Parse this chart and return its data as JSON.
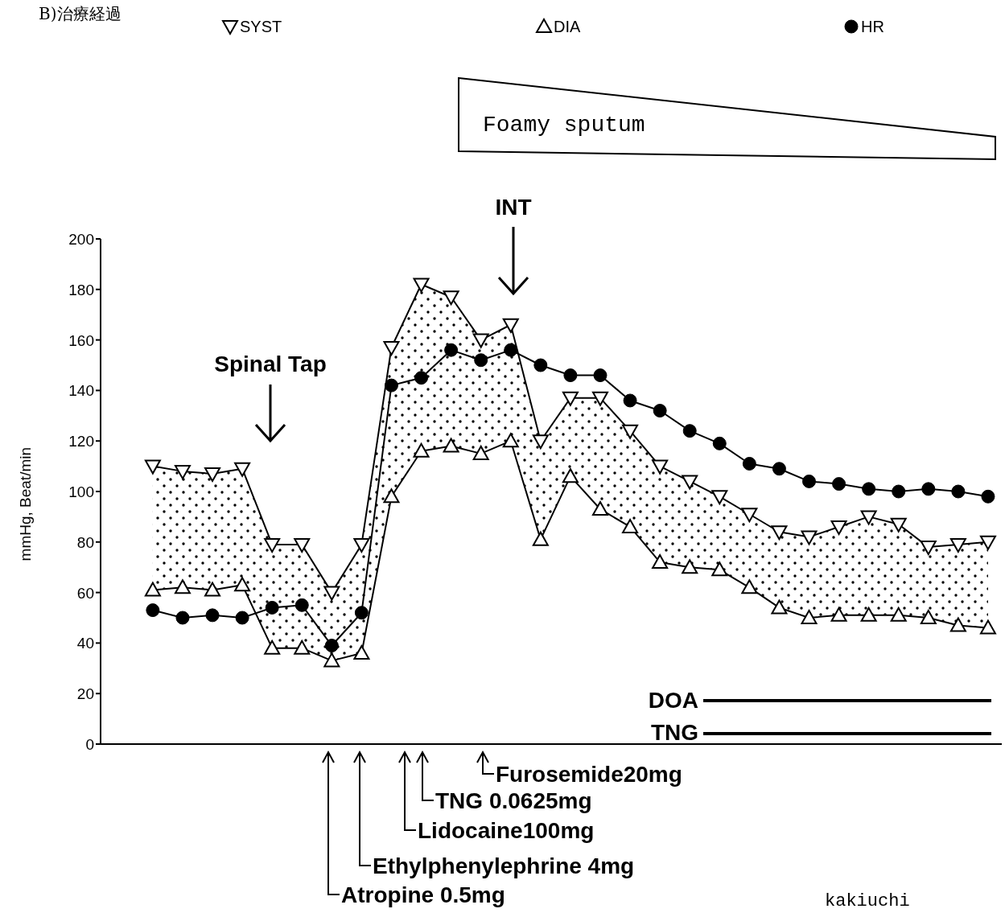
{
  "chart_data": {
    "type": "line",
    "title": "B)治療経過",
    "ylabel": "mmHg, Beat/min",
    "categories": [
      null,
      null,
      null,
      null,
      null,
      null,
      null,
      null,
      null,
      null,
      null,
      null,
      null,
      null,
      null,
      null,
      null,
      null,
      null,
      null,
      null,
      null,
      null,
      null,
      null,
      null,
      null,
      null,
      null
    ],
    "ylim": [
      0,
      200
    ],
    "yticks": [
      0,
      20,
      40,
      60,
      80,
      100,
      120,
      140,
      160,
      180,
      200
    ],
    "tick_labels": "y",
    "grid": false,
    "legend": "top",
    "line_style": "solid",
    "series": [
      {
        "name": "SYST",
        "color": "#000000",
        "marker": "triangle-down",
        "values": [
          110,
          108,
          107,
          109,
          79,
          79,
          60,
          79,
          157,
          182,
          177,
          160,
          166,
          120,
          137,
          137,
          124,
          110,
          104,
          98,
          91,
          84,
          82,
          86,
          90,
          87,
          78,
          79,
          80
        ],
        "lower": [
          61,
          62,
          61,
          63,
          38,
          38,
          33,
          36,
          98,
          116,
          118,
          115,
          120,
          81,
          106,
          93,
          86,
          72,
          70,
          69,
          62,
          54,
          50,
          51,
          51,
          51,
          50,
          47,
          46
        ],
        "upper": [
          110,
          108,
          107,
          109,
          79,
          79,
          60,
          79,
          157,
          182,
          177,
          160,
          166,
          120,
          137,
          137,
          124,
          110,
          104,
          98,
          91,
          84,
          82,
          86,
          90,
          87,
          78,
          79,
          80
        ]
      },
      {
        "name": "DIA",
        "color": "#000000",
        "marker": "triangle",
        "values": [
          61,
          62,
          61,
          63,
          38,
          38,
          33,
          36,
          98,
          116,
          118,
          115,
          120,
          81,
          106,
          93,
          86,
          72,
          70,
          69,
          62,
          54,
          50,
          51,
          51,
          51,
          50,
          47,
          46
        ]
      },
      {
        "name": "HR",
        "color": "#000000",
        "marker": "circle",
        "values": [
          53,
          50,
          51,
          50,
          54,
          55,
          39,
          52,
          142,
          145,
          156,
          152,
          156,
          150,
          146,
          146,
          136,
          132,
          124,
          119,
          111,
          109,
          104,
          103,
          101,
          100,
          101,
          100,
          98
        ]
      }
    ],
    "annotations": [
      "Spinal Tap",
      "INT",
      "Foamy sputum",
      "DOA",
      "TNG",
      "Furosemide20mg",
      "TNG 0.0625mg",
      "Lidocaine100mg",
      "Ethylphenylephrine 4mg",
      "Atropine 0.5mg",
      "kakiuchi"
    ]
  }
}
